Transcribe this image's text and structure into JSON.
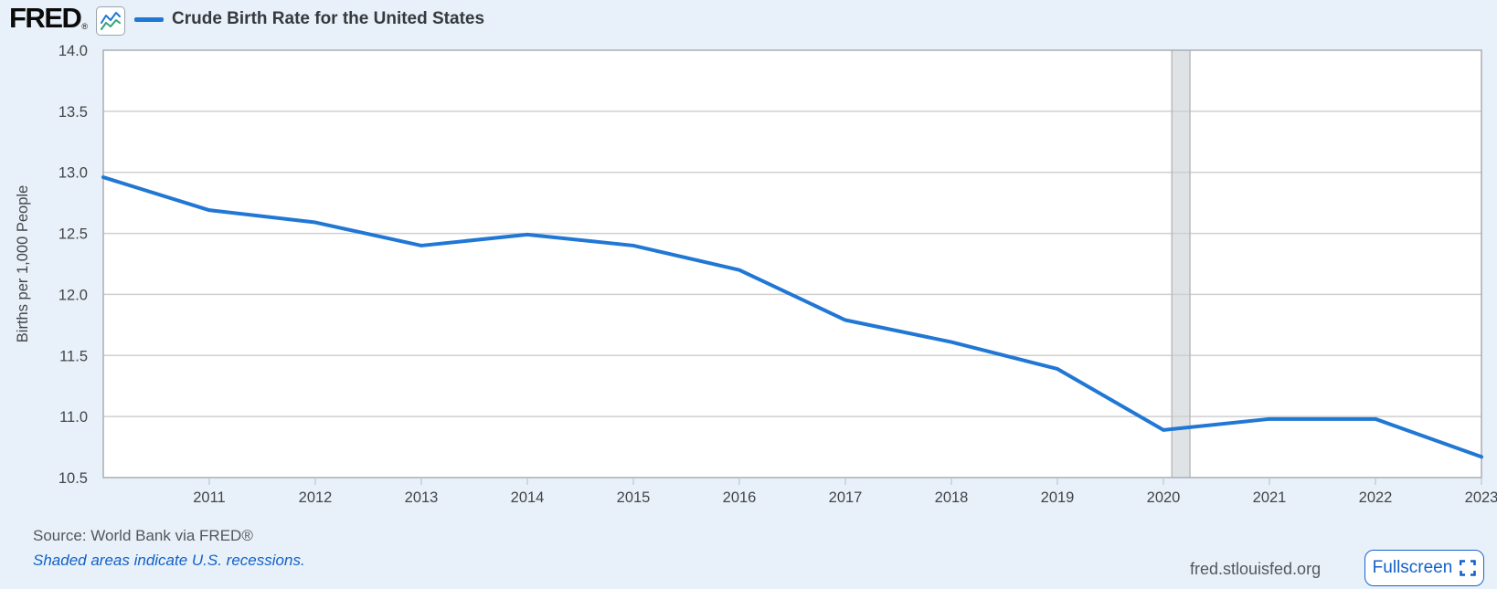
{
  "brand": {
    "logo_text": "FRED",
    "registered_mark": "®",
    "chart_icon": "fred-line-chart-icon"
  },
  "legend": {
    "series_label": "Crude Birth Rate for the United States",
    "swatch_color": "#2077d4"
  },
  "chart_data": {
    "type": "line",
    "title": "Crude Birth Rate for the United States",
    "ylabel": "Births per 1,000 People",
    "x": [
      2010,
      2011,
      2012,
      2013,
      2014,
      2015,
      2016,
      2017,
      2018,
      2019,
      2020,
      2021,
      2022,
      2023
    ],
    "values": [
      12.96,
      12.69,
      12.59,
      12.4,
      12.49,
      12.4,
      12.2,
      11.79,
      11.61,
      11.39,
      10.89,
      10.98,
      10.98,
      10.67
    ],
    "xlim": [
      2010,
      2023
    ],
    "ylim": [
      10.5,
      14.0
    ],
    "yticks": [
      14.0,
      13.5,
      13.0,
      12.5,
      12.0,
      11.5,
      11.0,
      10.5
    ],
    "xticks": [
      2011,
      2012,
      2013,
      2014,
      2015,
      2016,
      2017,
      2018,
      2019,
      2020,
      2021,
      2022,
      2023
    ],
    "grid": "horizontal",
    "legend_position": "top-left",
    "line_color": "#2077d4",
    "recession_bands": [
      {
        "x_start": 2020.08,
        "x_end": 2020.25,
        "meaning": "U.S. recession"
      }
    ]
  },
  "footer": {
    "source": "Source: World Bank via FRED®",
    "recession_note": "Shaded areas indicate U.S. recessions.",
    "site_label": "fred.stlouisfed.org",
    "fullscreen_label": "Fullscreen"
  },
  "colors": {
    "background": "#e8f1f9",
    "plot_background": "#ffffff",
    "grid_line": "#cfcfcf",
    "plot_border": "#a9aeb3",
    "series_line": "#2077d4",
    "recession_fill": "#dfe3e6",
    "recession_edge": "#b7bcc0",
    "tick_mark": "#c2cfdb",
    "axis_text": "#424548",
    "link_blue": "#1261c7"
  }
}
